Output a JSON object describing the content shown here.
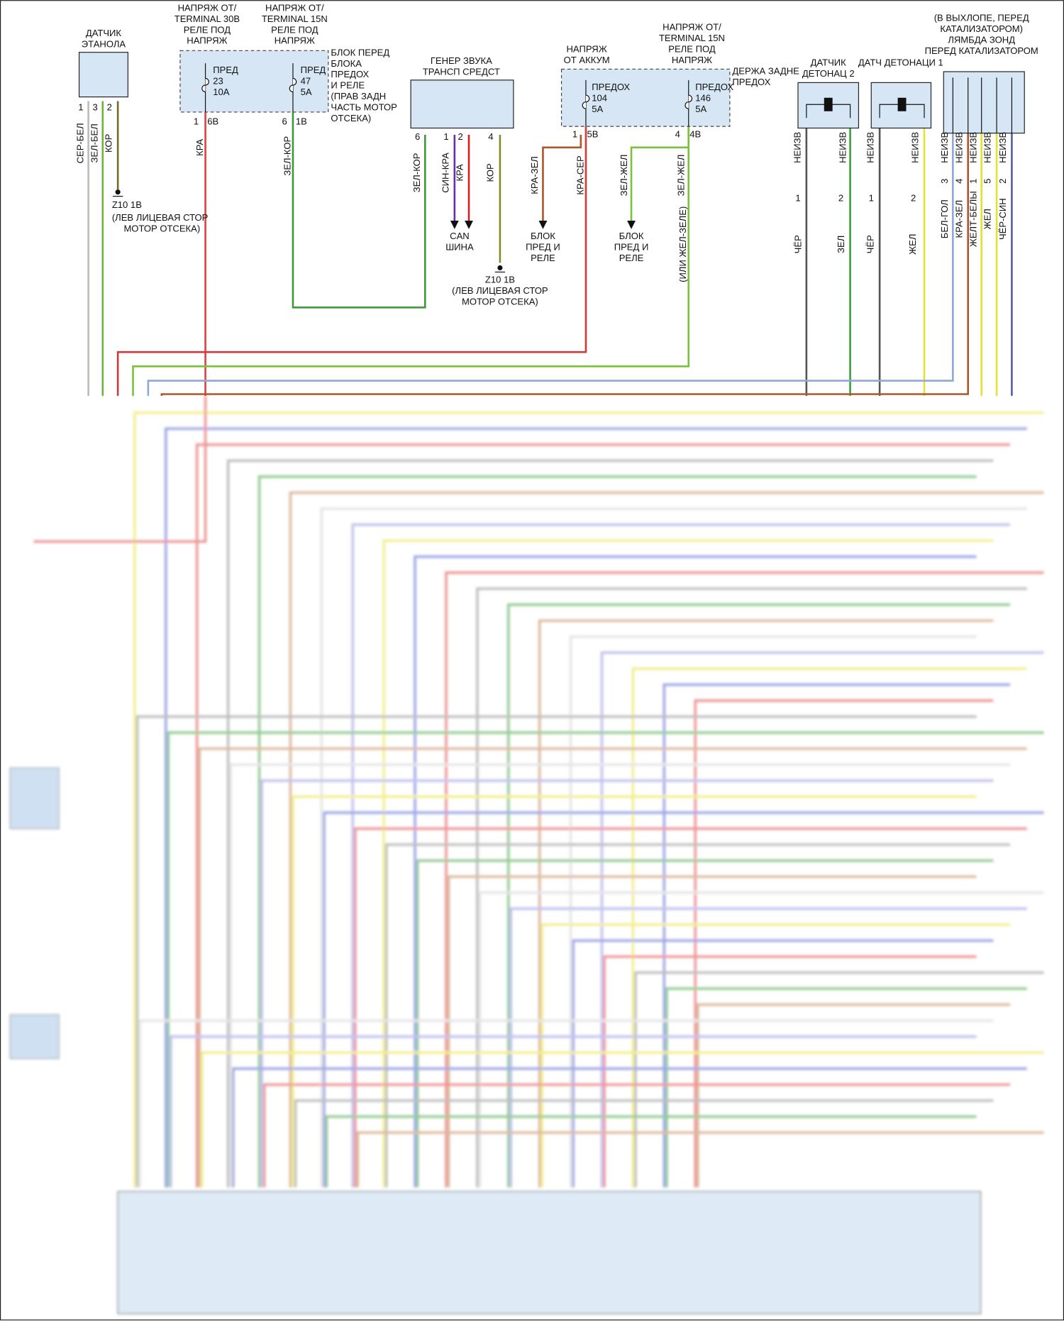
{
  "ethanol_sensor": {
    "title": [
      "ДАТЧИК",
      "ЭТАНОЛА"
    ],
    "pins": [
      "1",
      "3",
      "2"
    ],
    "wires": [
      "СЕР-БЕЛ",
      "ЗЕЛ-БЕЛ",
      "КОР"
    ],
    "ground": [
      "Z10 1B",
      "(ЛЕВ ЛИЦЕВАЯ СТОР",
      "МОТОР ОТСЕКА)"
    ]
  },
  "front_fuse_block": {
    "supply_30": [
      "НАПРЯЖ ОТ/",
      "TERMINAL 30B",
      "РЕЛЕ ПОД",
      "НАПРЯЖ"
    ],
    "supply_15": [
      "НАПРЯЖ ОТ/",
      "TERMINAL 15N",
      "РЕЛЕ ПОД",
      "НАПРЯЖ"
    ],
    "fuses": [
      [
        "ПРЕД",
        "23",
        "10A"
      ],
      [
        "ПРЕД",
        "47",
        "5A"
      ]
    ],
    "title": [
      "БЛОК ПЕРЕД",
      "БЛОКА",
      "ПРЕДОХ",
      "И РЕЛЕ",
      "(ПРАВ ЗАДН",
      "ЧАСТЬ МОТОР",
      "ОТСЕКА)"
    ],
    "pins": [
      "1",
      "6B",
      "6",
      "1B"
    ],
    "wires": [
      "КРА",
      "ЗЕЛ-КОР"
    ]
  },
  "sound_generator": {
    "title": [
      "ГЕНЕР ЗВУКА",
      "ТРАНСП СРЕДСТ"
    ],
    "pins": [
      "6",
      "1",
      "2",
      "4"
    ],
    "wires": [
      "ЗЕЛ-КОР",
      "СИН-КРА",
      "КРА",
      "КОР"
    ],
    "can_bus": [
      "CAN",
      "ШИНА"
    ],
    "ground": [
      "Z10 1B",
      "(ЛЕВ ЛИЦЕВАЯ СТОР",
      "МОТОР ОТСЕКА)"
    ]
  },
  "rear_fuse_holder": {
    "supply_battery": [
      "НАПРЯЖ",
      "ОТ АККУМ"
    ],
    "supply_15": [
      "НАПРЯЖ ОТ/",
      "TERMINAL 15N",
      "РЕЛЕ ПОД",
      "НАПРЯЖ"
    ],
    "title": [
      "ДЕРЖА ЗАДНЕ",
      "ПРЕДОХ"
    ],
    "fuses": [
      [
        "ПРЕДОХ",
        "104",
        "5A"
      ],
      [
        "ПРЕДОХ",
        "146",
        "5A"
      ]
    ],
    "pins": [
      "1",
      "5B",
      "4",
      "4B"
    ],
    "wires": [
      "КРА-ЗЕЛ",
      "КРА-СЕР",
      "ЗЕЛ-ЖЕЛ",
      "ЗЕЛ-ЖЕЛ"
    ],
    "alt_color": "(ИЛИ ЖЕЛ-ЗЕЛЕ)",
    "destinations": [
      [
        "БЛОК",
        "ПРЕД И",
        "РЕЛЕ"
      ],
      [
        "БЛОК",
        "ПРЕД И",
        "РЕЛЕ"
      ]
    ]
  },
  "knock_sensor_2": {
    "title": [
      "ДАТЧИК",
      "ДЕТОНАЦ 2"
    ],
    "connector": [
      "НЕИЗВ",
      "НЕИЗВ"
    ],
    "pins": [
      "1",
      "2"
    ],
    "wires": [
      "ЧЁР",
      "ЗЕЛ"
    ]
  },
  "knock_sensor_1": {
    "title": "ДАТЧ ДЕТОНАЦИ 1",
    "connector": [
      "НЕИЗВ",
      "НЕИЗВ"
    ],
    "pins": [
      "1",
      "2"
    ],
    "wires": [
      "ЧЁР",
      "ЖЕЛ"
    ]
  },
  "lambda_sensor": {
    "title": [
      "(В ВЫХЛОПЕ, ПЕРЕД",
      "КАТАЛИЗАТОРОМ)",
      "ЛЯМБДА ЗОНД",
      "ПЕРЕД КАТАЛИЗАТОРОМ"
    ],
    "connector": [
      "НЕИЗВ",
      "НЕИЗВ",
      "НЕИЗВ",
      "НЕИЗВ",
      "НЕИЗВ"
    ],
    "pins": [
      "3",
      "4",
      "1",
      "5",
      "2"
    ],
    "wires": [
      "БЕЛ-ГОЛ",
      "КРА-ЗЕЛ",
      "ЖЕЛТ-БЕЛЫ",
      "ЖЕЛ",
      "ЧЁР-СИН"
    ]
  }
}
